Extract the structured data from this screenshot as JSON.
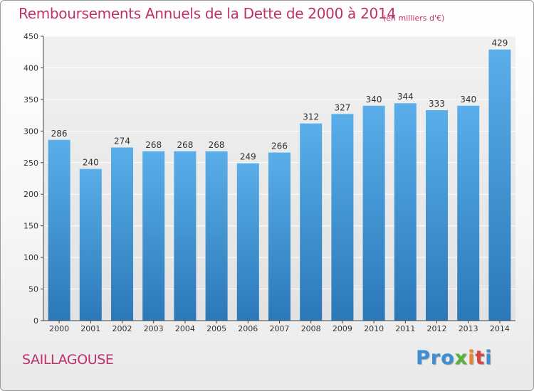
{
  "title": "Remboursements Annuels de la Dette de 2000 à 2014",
  "unit": "(en milliers d'€)",
  "city": "SAILLAGOUSE",
  "logo": [
    "Pro",
    "x",
    "i",
    "t",
    "i"
  ],
  "colors": {
    "bar_top": "#5aaeea",
    "bar_bottom": "#2b78b8",
    "text_accent": "#c0306a"
  },
  "chart_data": {
    "type": "bar",
    "title": "Remboursements Annuels de la Dette de 2000 à 2014",
    "categories": [
      "2000",
      "2001",
      "2002",
      "2003",
      "2004",
      "2005",
      "2006",
      "2007",
      "2008",
      "2009",
      "2010",
      "2011",
      "2012",
      "2013",
      "2014"
    ],
    "values": [
      286,
      240,
      274,
      268,
      268,
      268,
      249,
      266,
      312,
      327,
      340,
      344,
      333,
      340,
      429
    ],
    "xlabel": "",
    "ylabel": "",
    "ylim": [
      0,
      450
    ],
    "yticks": [
      0,
      50,
      100,
      150,
      200,
      250,
      300,
      350,
      400,
      450
    ],
    "grid": true,
    "legend": "none"
  }
}
